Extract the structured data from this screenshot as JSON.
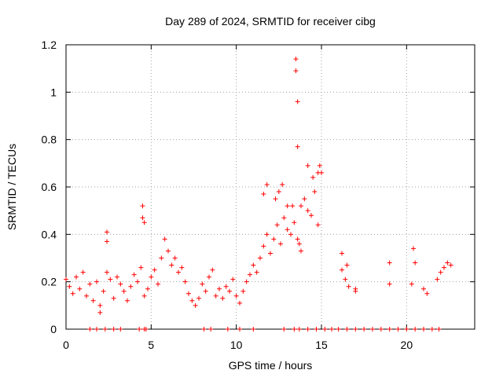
{
  "chart_data": {
    "type": "scatter",
    "title": "Day 289 of 2024, SRMTID for receiver cibg",
    "xlabel": "GPS time / hours",
    "ylabel": "SRMTID / TECUs",
    "xlim": [
      0,
      24
    ],
    "ylim": [
      0,
      1.2
    ],
    "xticks": [
      0,
      5,
      10,
      15,
      20
    ],
    "yticks": [
      0,
      0.2,
      0.4,
      0.6,
      0.8,
      1,
      1.2
    ],
    "xtick_labels": [
      "0",
      "5",
      "10",
      "15",
      "20"
    ],
    "ytick_labels": [
      "0",
      "0.2",
      "0.4",
      "0.6",
      "0.8",
      "1",
      "1.2"
    ],
    "grid": true,
    "marker": "+",
    "color": "#ff0000",
    "series": [
      {
        "name": "SRMTID",
        "x": [
          0.0,
          0.2,
          0.4,
          0.6,
          0.8,
          1.0,
          1.2,
          1.4,
          1.6,
          1.8,
          2.0,
          2.2,
          2.4,
          2.6,
          2.8,
          3.0,
          3.2,
          3.4,
          3.6,
          3.8,
          4.0,
          4.2,
          4.4,
          4.6,
          4.8,
          5.0,
          5.2,
          5.4,
          5.6,
          5.8,
          6.0,
          6.2,
          6.4,
          6.6,
          6.8,
          7.0,
          7.2,
          7.4,
          7.6,
          7.8,
          8.0,
          8.2,
          8.4,
          8.6,
          8.8,
          9.0,
          9.2,
          9.4,
          9.6,
          9.8,
          10.0,
          10.2,
          10.4,
          10.6,
          10.8,
          11.0,
          11.2,
          11.4,
          11.6,
          11.8,
          12.0,
          12.2,
          12.4,
          12.6,
          12.8,
          13.0,
          13.2,
          13.4,
          13.6,
          13.8,
          14.0,
          14.2,
          14.4,
          14.6,
          14.8,
          15.0,
          16.2,
          16.4,
          16.6,
          17.0,
          19.0,
          20.3,
          20.5,
          21.0,
          21.2,
          21.8,
          22.0,
          22.2,
          22.4,
          22.6,
          2.0,
          2.4,
          2.4,
          4.5,
          4.5,
          4.6,
          11.6,
          11.8,
          12.3,
          12.5,
          12.7,
          13.0,
          13.3,
          13.5,
          13.5,
          13.6,
          13.6,
          13.7,
          13.8,
          14.2,
          14.5,
          14.8,
          14.9,
          16.2,
          16.5,
          17.0,
          19.0,
          20.4,
          1.4,
          1.8,
          2.3,
          2.8,
          3.2,
          4.3,
          4.6,
          4.7,
          8.1,
          8.5,
          9.5,
          10.2,
          11.0,
          12.8,
          13.4,
          13.7,
          14.2,
          14.7,
          15.2,
          15.6,
          16.0,
          16.5,
          17.0,
          17.5,
          18.0,
          18.5,
          19.0,
          19.5,
          20.0,
          20.5,
          21.0,
          21.5,
          21.9
        ],
        "y": [
          0.21,
          0.18,
          0.15,
          0.22,
          0.17,
          0.24,
          0.14,
          0.19,
          0.12,
          0.2,
          0.1,
          0.16,
          0.24,
          0.21,
          0.13,
          0.22,
          0.19,
          0.16,
          0.12,
          0.18,
          0.23,
          0.2,
          0.26,
          0.14,
          0.17,
          0.22,
          0.25,
          0.19,
          0.3,
          0.38,
          0.33,
          0.27,
          0.3,
          0.24,
          0.26,
          0.2,
          0.15,
          0.12,
          0.1,
          0.13,
          0.19,
          0.16,
          0.22,
          0.25,
          0.14,
          0.17,
          0.13,
          0.18,
          0.16,
          0.21,
          0.14,
          0.11,
          0.16,
          0.2,
          0.23,
          0.27,
          0.24,
          0.3,
          0.35,
          0.4,
          0.32,
          0.38,
          0.44,
          0.36,
          0.47,
          0.52,
          0.4,
          0.45,
          0.38,
          0.33,
          0.55,
          0.5,
          0.48,
          0.58,
          0.44,
          0.66,
          0.25,
          0.21,
          0.18,
          0.16,
          0.19,
          0.19,
          0.28,
          0.17,
          0.15,
          0.21,
          0.24,
          0.26,
          0.28,
          0.27,
          0.07,
          0.41,
          0.37,
          0.52,
          0.47,
          0.45,
          0.57,
          0.61,
          0.55,
          0.58,
          0.61,
          0.42,
          0.52,
          1.14,
          1.09,
          0.96,
          0.77,
          0.36,
          0.52,
          0.69,
          0.64,
          0.66,
          0.69,
          0.32,
          0.27,
          0.17,
          0.28,
          0.34,
          0,
          0,
          0,
          0,
          0,
          0,
          0,
          0,
          0,
          0,
          0,
          0,
          0,
          0,
          0,
          0,
          0,
          0,
          0,
          0,
          0,
          0,
          0,
          0,
          0,
          0,
          0,
          0,
          0,
          0,
          0,
          0,
          0
        ]
      }
    ]
  }
}
